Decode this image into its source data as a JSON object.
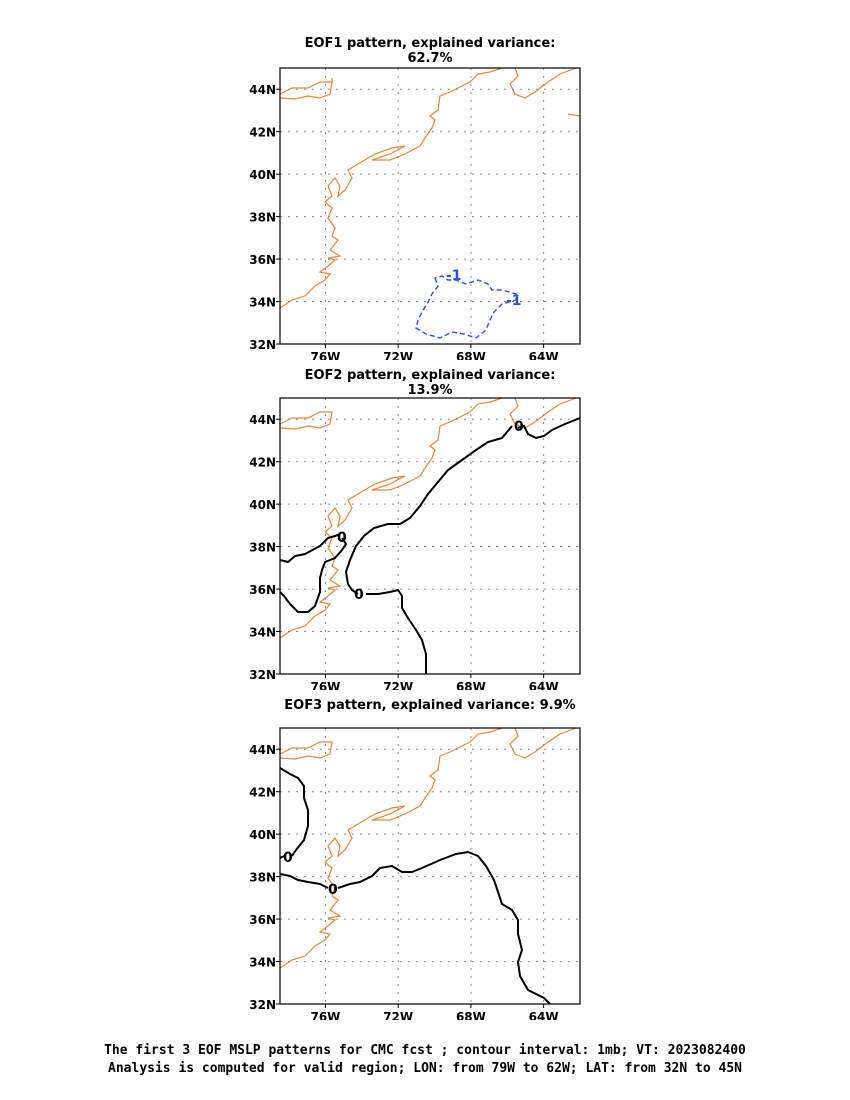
{
  "panels": [
    {
      "title": "EOF1 pattern, explained variance: 62.7%",
      "contour_labels": [
        {
          "text": "-1",
          "value": -1
        },
        {
          "text": "-1",
          "value": -1
        }
      ]
    },
    {
      "title": "EOF2 pattern, explained variance: 13.9%",
      "contour_labels": [
        {
          "text": "0",
          "value": 0
        },
        {
          "text": "0",
          "value": 0
        },
        {
          "text": "0",
          "value": 0
        }
      ]
    },
    {
      "title": "EOF3 pattern, explained variance: 9.9%",
      "contour_labels": [
        {
          "text": "0",
          "value": 0
        },
        {
          "text": "0",
          "value": 0
        }
      ]
    }
  ],
  "axes": {
    "lat_ticks": [
      "44N",
      "42N",
      "40N",
      "38N",
      "36N",
      "34N",
      "32N"
    ],
    "lon_ticks": [
      "76W",
      "72W",
      "68W",
      "64W"
    ],
    "lon_range": [
      -78.5,
      -62
    ],
    "lat_range": [
      32,
      45
    ],
    "grid": true
  },
  "colors": {
    "coastline": "#e8863a",
    "negative_contour": "#2b50e0",
    "zero_contour": "#000000"
  },
  "caption": {
    "line1": "The first 3 EOF MSLP patterns for CMC fcst ; contour interval: 1mb; VT: 2023082400",
    "line2": "Analysis is computed for valid region; LON: from 79W to 62W; LAT: from 32N to 45N"
  }
}
